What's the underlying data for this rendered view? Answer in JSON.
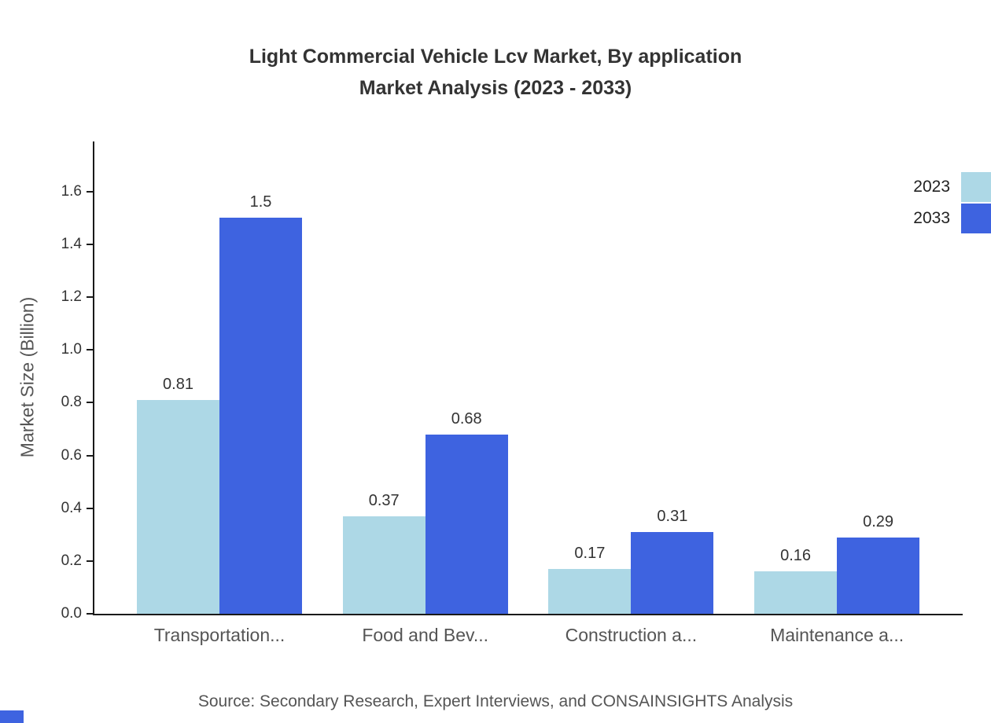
{
  "header": {
    "line1": "Light Commercial Vehicle Lcv Market, By application",
    "line2": "Market Analysis (2023 - 2033)"
  },
  "footer": {
    "source": "Source: Secondary Research, Expert Interviews, and CONSAINSIGHTS Analysis"
  },
  "colors": {
    "series_2023": "#ADD8E6",
    "series_2033": "#3E63E0",
    "axis": "#1a1a1a",
    "text": "#333333",
    "muted": "#555555",
    "brand_corner": "#3E63E0"
  },
  "chart_data": {
    "type": "bar",
    "title": "Light Commercial Vehicle Lcv Market, By application Market Analysis (2023 - 2033)",
    "ylabel": "Market Size (Billion)",
    "xlabel": "",
    "categories": [
      "Transportation...",
      "Food and Bev...",
      "Construction a...",
      "Maintenance a..."
    ],
    "series": [
      {
        "name": "2023",
        "color": "#ADD8E6",
        "values": [
          0.81,
          0.37,
          0.17,
          0.16
        ]
      },
      {
        "name": "2033",
        "color": "#3E63E0",
        "values": [
          1.5,
          0.68,
          0.31,
          0.29
        ]
      }
    ],
    "yticks": [
      0.0,
      0.2,
      0.4,
      0.6,
      0.8,
      1.0,
      1.2,
      1.4,
      1.6
    ],
    "ylim": [
      0,
      1.79
    ],
    "grid": false,
    "legend_position": "top-right",
    "value_labels": true
  }
}
